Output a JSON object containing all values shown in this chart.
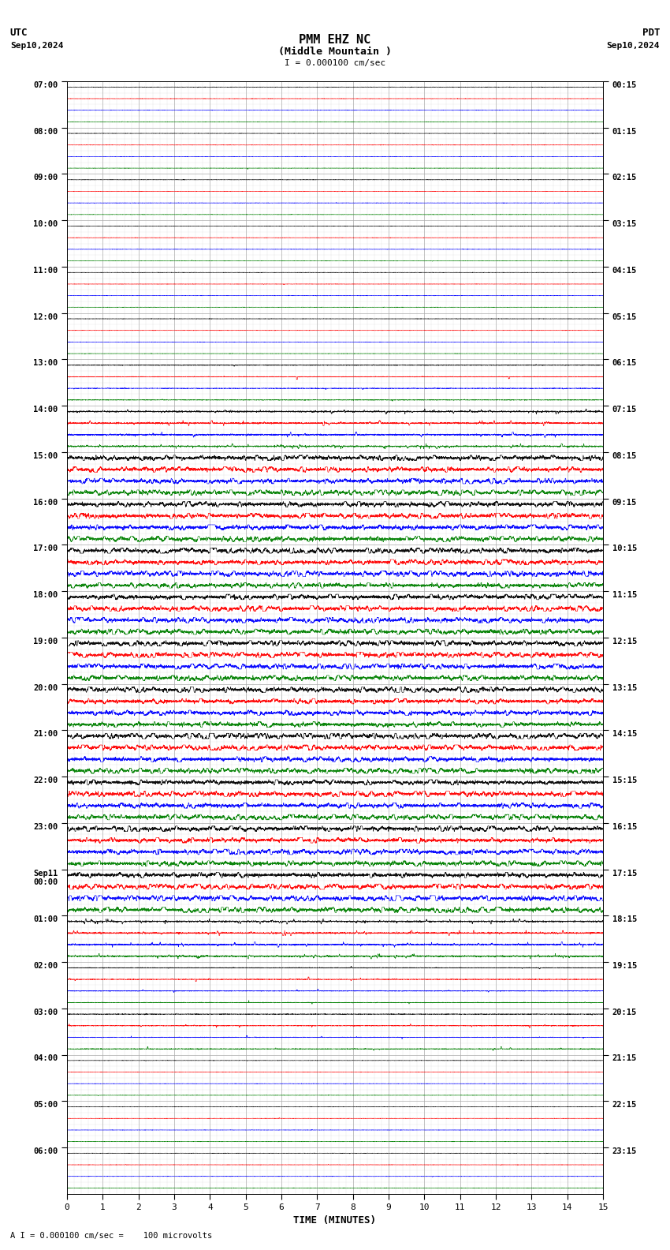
{
  "title_line1": "PMM EHZ NC",
  "title_line2": "(Middle Mountain )",
  "title_scale": "I = 0.000100 cm/sec",
  "label_utc": "UTC",
  "label_pdt": "PDT",
  "date_left": "Sep10,2024",
  "date_right": "Sep10,2024",
  "xlabel": "TIME (MINUTES)",
  "footer": "A I = 0.000100 cm/sec =    100 microvolts",
  "utc_labels": [
    "07:00",
    "08:00",
    "09:00",
    "10:00",
    "11:00",
    "12:00",
    "13:00",
    "14:00",
    "15:00",
    "16:00",
    "17:00",
    "18:00",
    "19:00",
    "20:00",
    "21:00",
    "22:00",
    "23:00",
    "Sep11\n00:00",
    "01:00",
    "02:00",
    "03:00",
    "04:00",
    "05:00",
    "06:00"
  ],
  "pdt_labels": [
    "00:15",
    "01:15",
    "02:15",
    "03:15",
    "04:15",
    "05:15",
    "06:15",
    "07:15",
    "08:15",
    "09:15",
    "10:15",
    "11:15",
    "12:15",
    "13:15",
    "14:15",
    "15:15",
    "16:15",
    "17:15",
    "18:15",
    "19:15",
    "20:15",
    "21:15",
    "22:15",
    "23:15"
  ],
  "n_hours": 24,
  "n_subrows": 4,
  "n_minutes": 15,
  "bg_color": "#ffffff",
  "grid_color": "#aaaaaa",
  "colors": [
    "black",
    "red",
    "blue",
    "green"
  ],
  "activity_by_hour": [
    0,
    0,
    0,
    0,
    0,
    0,
    1,
    2,
    3,
    3,
    3,
    3,
    3,
    3,
    3,
    3,
    3,
    3,
    2,
    1,
    1,
    0,
    0,
    0
  ],
  "note_sep11_hour": 17
}
